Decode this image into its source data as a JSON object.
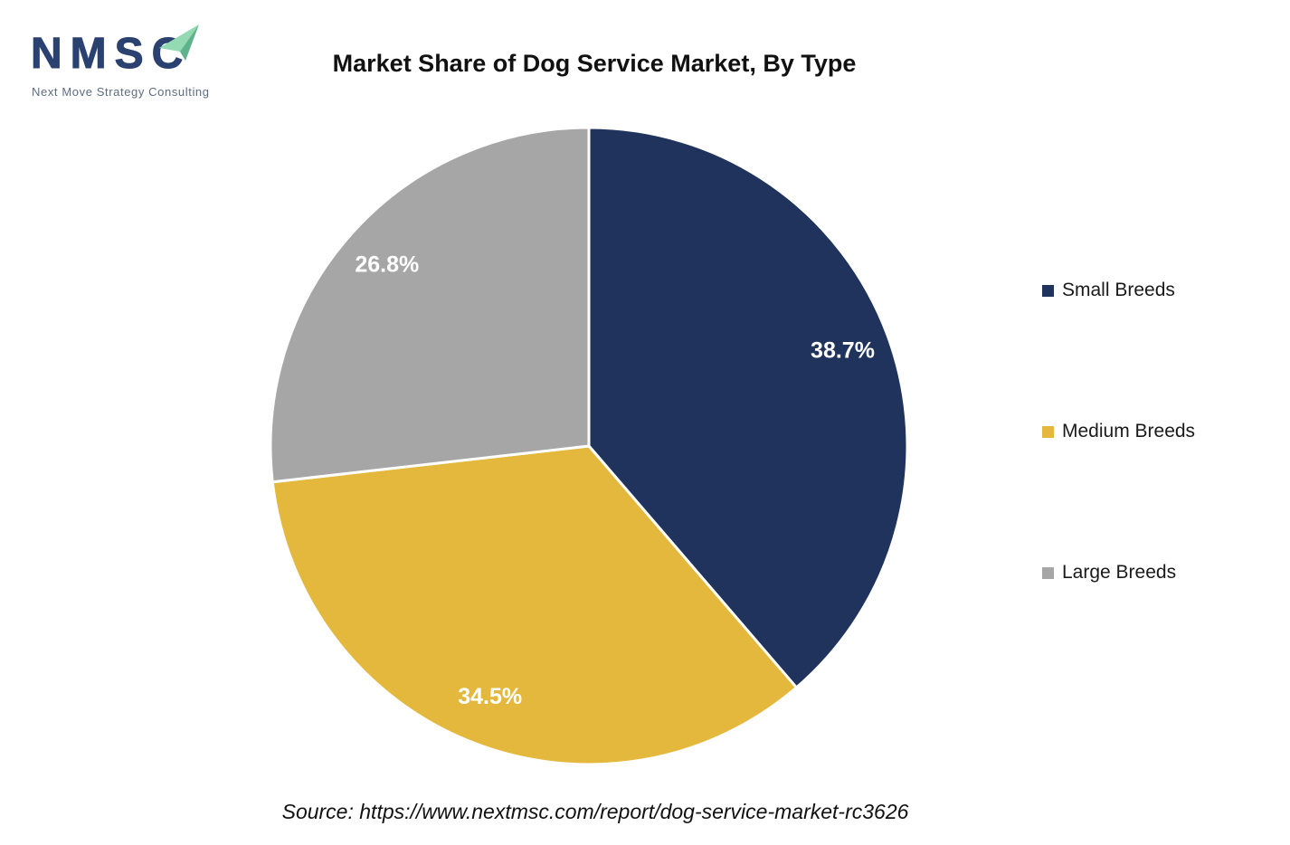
{
  "logo": {
    "acronym": "NMSC",
    "tagline": "Next Move Strategy Consulting",
    "arrow_icon": "paper-plane-arrow",
    "colors": {
      "letters": "#2B4170",
      "tagline": "#5D6C80",
      "arrow_light": "#93D9B1",
      "arrow_dark": "#5FB38C"
    }
  },
  "title": "Market Share of Dog Service Market, By Type",
  "source": "Source: https://www.nextmsc.com/report/dog-service-market-rc3626",
  "legend": {
    "position": "right",
    "items": [
      {
        "label": "Small Breeds",
        "color": "#1F335C"
      },
      {
        "label": "Medium Breeds",
        "color": "#E4B83D"
      },
      {
        "label": "Large Breeds",
        "color": "#A6A6A6"
      }
    ]
  },
  "chart_data": {
    "type": "pie",
    "title": "Market Share of Dog Service Market, By Type",
    "categories": [
      "Small Breeds",
      "Medium Breeds",
      "Large Breeds"
    ],
    "values": [
      38.7,
      34.5,
      26.8
    ],
    "labels": [
      "38.7%",
      "34.5%",
      "26.8%"
    ],
    "colors": [
      "#1F335C",
      "#E4B83D",
      "#A6A6A6"
    ],
    "start_angle_deg": 0,
    "direction": "clockwise",
    "slice_separator_color": "#FFFFFF",
    "label_color": "#FFFFFF",
    "legend_position": "right",
    "source": "Source: https://www.nextmsc.com/report/dog-service-market-rc3626"
  }
}
